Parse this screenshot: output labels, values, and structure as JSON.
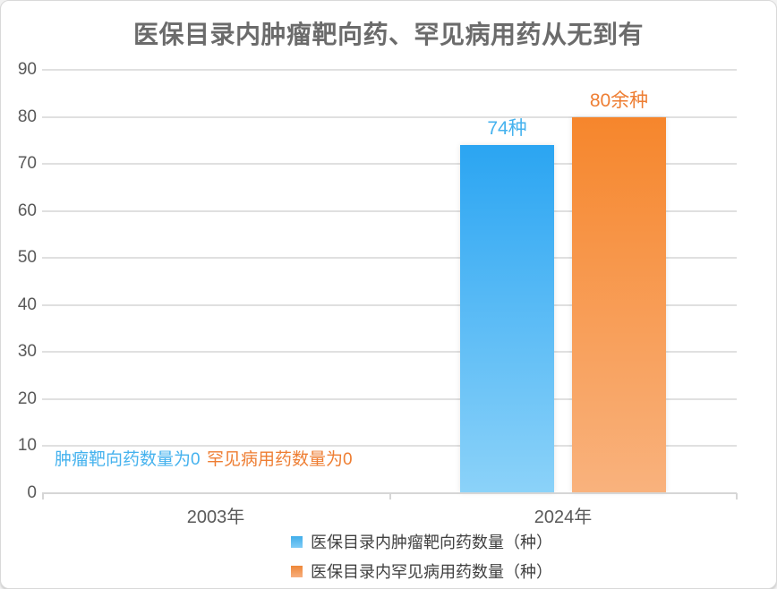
{
  "chart_data": {
    "type": "bar",
    "title": "医保目录内肿瘤靶向药、罕见病用药从无到有",
    "categories": [
      "2003年",
      "2024年"
    ],
    "series": [
      {
        "name": "医保目录内肿瘤靶向药数量（种）",
        "values": [
          0,
          74
        ],
        "value_labels": [
          "",
          "74种"
        ],
        "color_top": "#2ba5f2",
        "color_bottom": "#8bd2f9",
        "label_color": "#45b2ee"
      },
      {
        "name": "医保目录内罕见病用药数量（种）",
        "values": [
          0,
          80
        ],
        "value_labels": [
          "",
          "80余种"
        ],
        "color_top": "#f6862c",
        "color_bottom": "#f9b27d",
        "label_color": "#ee7e33"
      }
    ],
    "annotations": [
      {
        "text": "肿瘤靶向药数量为0",
        "color": "#45b2ee"
      },
      {
        "text": "罕见病用药数量为0",
        "color": "#ee7e33"
      }
    ],
    "ylim": [
      0,
      90
    ],
    "yticks": [
      0,
      10,
      20,
      30,
      40,
      50,
      60,
      70,
      80,
      90
    ],
    "grid": true,
    "legend_position": "bottom"
  }
}
